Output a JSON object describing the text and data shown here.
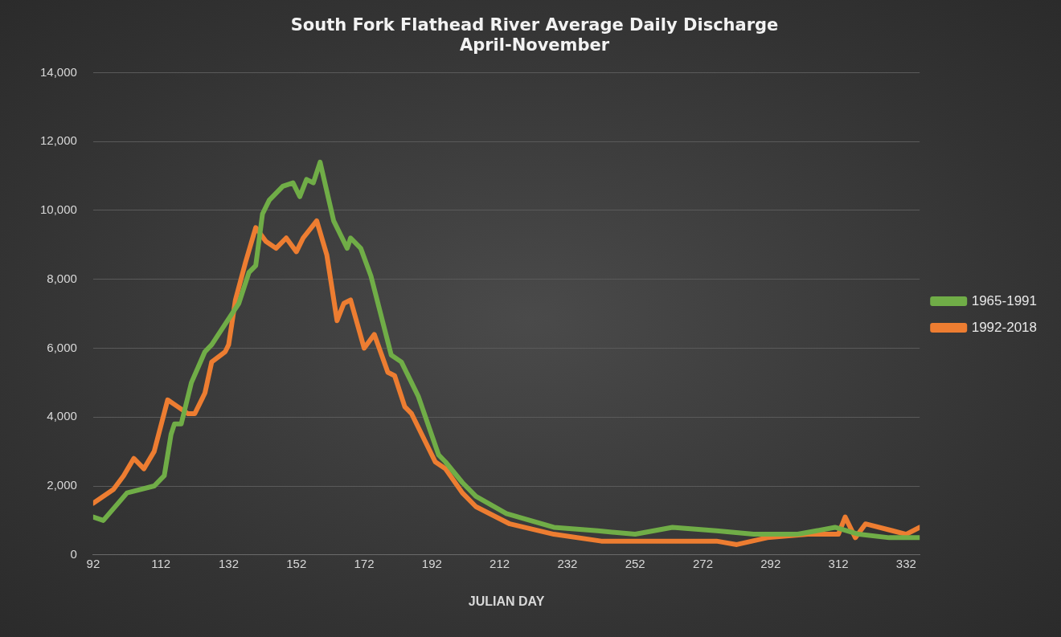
{
  "chart_data": {
    "type": "line",
    "title": "South Fork Flathead River Average Daily Discharge",
    "subtitle": "April-November",
    "xlabel": "JULIAN DAY",
    "xlim": [
      92,
      336
    ],
    "xticks": [
      92,
      112,
      132,
      152,
      172,
      192,
      212,
      232,
      252,
      272,
      292,
      312,
      332
    ],
    "ylim": [
      0,
      14000
    ],
    "yticks": [
      {
        "value": 0,
        "label": "0"
      },
      {
        "value": 2000,
        "label": "2,000"
      },
      {
        "value": 4000,
        "label": "4,000"
      },
      {
        "value": 6000,
        "label": "6,000"
      },
      {
        "value": 8000,
        "label": "8,000"
      },
      {
        "value": 10000,
        "label": "10,000"
      },
      {
        "value": 12000,
        "label": "12,000"
      },
      {
        "value": 14000,
        "label": "14,000"
      }
    ],
    "grid": "y",
    "legend": "right",
    "marker": "none",
    "series": [
      {
        "name": "1965-1991",
        "color": "#70ad47",
        "x": [
          92,
          95,
          102,
          110,
          113,
          115,
          116,
          118,
          121,
          125,
          127,
          131,
          135,
          138,
          140,
          142,
          144,
          148,
          151,
          153,
          155,
          157,
          159,
          163,
          167,
          168,
          171,
          174,
          180,
          183,
          188,
          194,
          196,
          201,
          205,
          214,
          228,
          241,
          252,
          263,
          276,
          287,
          300,
          311,
          318,
          327,
          336
        ],
        "values": [
          1100,
          1000,
          1800,
          2000,
          2300,
          3500,
          3800,
          3800,
          5000,
          5900,
          6100,
          6700,
          7300,
          8200,
          8400,
          9900,
          10300,
          10700,
          10800,
          10400,
          10900,
          10800,
          11400,
          9700,
          8900,
          9200,
          8900,
          8100,
          5800,
          5600,
          4600,
          2900,
          2700,
          2100,
          1700,
          1200,
          800,
          700,
          600,
          800,
          700,
          600,
          600,
          800,
          600,
          500,
          500
        ]
      },
      {
        "name": "1992-2018",
        "color": "#ed7d31",
        "x": [
          92,
          98,
          101,
          104,
          107,
          110,
          114,
          117,
          120,
          122,
          125,
          127,
          131,
          132,
          134,
          137,
          140,
          143,
          146,
          149,
          152,
          154,
          158,
          161,
          164,
          166,
          168,
          172,
          175,
          179,
          181,
          184,
          186,
          193,
          196,
          201,
          205,
          215,
          228,
          242,
          253,
          263,
          276,
          282,
          291,
          303,
          312,
          314,
          317,
          320,
          328,
          332,
          336
        ],
        "values": [
          1500,
          1900,
          2300,
          2800,
          2500,
          3000,
          4500,
          4300,
          4100,
          4100,
          4700,
          5600,
          5900,
          6100,
          7400,
          8500,
          9500,
          9100,
          8900,
          9200,
          8800,
          9200,
          9700,
          8700,
          6800,
          7300,
          7400,
          6000,
          6400,
          5300,
          5200,
          4300,
          4100,
          2700,
          2500,
          1800,
          1400,
          900,
          600,
          400,
          400,
          400,
          400,
          300,
          500,
          600,
          600,
          1100,
          500,
          900,
          700,
          600,
          800
        ]
      }
    ]
  }
}
